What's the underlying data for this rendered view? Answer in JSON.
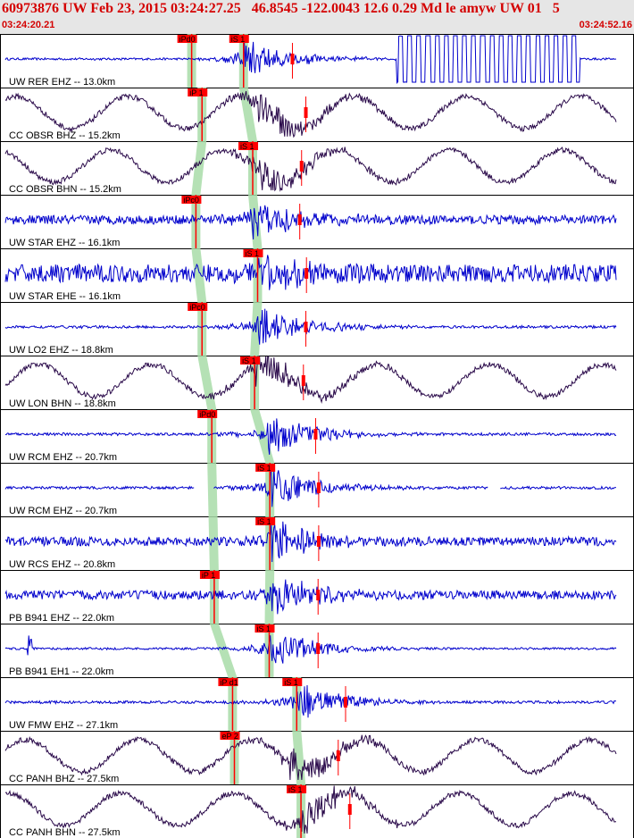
{
  "header": {
    "title": "60973876 UW Feb 23, 2015 03:24:27.25   46.8545 -122.0043 12.6 0.29 Md le amyw UW 01   5",
    "time_start": "03:24:20.21",
    "time_end": "03:24:52.16"
  },
  "colors": {
    "header_bg": "#e6e6e6",
    "title_red": "#d40000",
    "trace_blue": "#0000cc",
    "trace_dark": "#2a0a4a",
    "pick_red": "#ff0000",
    "window_green": "#a8dca8"
  },
  "chart_data": {
    "type": "seismogram",
    "time_range": [
      "03:24:20.21",
      "03:24:52.16"
    ],
    "event_origin": "03:24:27.25",
    "traces": [
      {
        "label": "UW RER EHZ -- 13.0km",
        "color": "blue",
        "picks": [
          {
            "label": "iPd0",
            "t": 0.305
          },
          {
            "label": "iS 1",
            "t": 0.39
          }
        ],
        "noise": "clipped-band",
        "gaps": []
      },
      {
        "label": "CC OBSR BHZ -- 15.2km",
        "color": "dark",
        "picks": [
          {
            "label": "iP 1",
            "t": 0.322
          }
        ],
        "noise": "long-period",
        "gaps": []
      },
      {
        "label": "CC OBSR BHN -- 15.2km",
        "color": "dark",
        "picks": [
          {
            "label": "iS 1",
            "t": 0.405
          }
        ],
        "noise": "long-period",
        "gaps": []
      },
      {
        "label": "UW STAR EHZ -- 16.1km",
        "color": "blue",
        "picks": [
          {
            "label": "iPc0",
            "t": 0.312
          }
        ],
        "noise": "high-freq",
        "gaps": []
      },
      {
        "label": "UW STAR EHE -- 16.1km",
        "color": "blue",
        "picks": [
          {
            "label": "iS 1",
            "t": 0.413
          }
        ],
        "noise": "high-freq-strong",
        "gaps": []
      },
      {
        "label": "UW LO2 EHZ -- 18.8km",
        "color": "blue",
        "picks": [
          {
            "label": "iPc0",
            "t": 0.322
          }
        ],
        "noise": "quiet",
        "gaps": []
      },
      {
        "label": "UW LON BHN -- 18.8km",
        "color": "dark",
        "picks": [
          {
            "label": "iS 1",
            "t": 0.408
          }
        ],
        "noise": "long-period",
        "gaps": []
      },
      {
        "label": "UW RCM EHZ -- 20.7km",
        "color": "blue",
        "picks": [
          {
            "label": "iPd0",
            "t": 0.338
          }
        ],
        "noise": "quiet",
        "gaps": []
      },
      {
        "label": "UW RCM EHZ -- 20.7km",
        "color": "blue",
        "picks": [
          {
            "label": "iS 1",
            "t": 0.433
          }
        ],
        "noise": "quiet",
        "gaps": [
          [
            0.31,
            0.34
          ],
          [
            0.79,
            0.81
          ]
        ]
      },
      {
        "label": "UW RCS EHZ -- 20.8km",
        "color": "blue",
        "picks": [
          {
            "label": "iS 1",
            "t": 0.433
          }
        ],
        "noise": "high-freq",
        "gaps": []
      },
      {
        "label": "PB B941 EHZ -- 22.0km",
        "color": "blue",
        "picks": [
          {
            "label": "iP 1",
            "t": 0.342
          }
        ],
        "noise": "high-freq",
        "gaps": []
      },
      {
        "label": "PB B941 EH1 -- 22.0km",
        "color": "blue",
        "picks": [
          {
            "label": "iS 1",
            "t": 0.432
          }
        ],
        "noise": "quiet-spike",
        "gaps": []
      },
      {
        "label": "UW FMW EHZ -- 27.1km",
        "color": "blue",
        "picks": [
          {
            "label": "iP d1",
            "t": 0.372
          },
          {
            "label": "iS 1",
            "t": 0.477
          }
        ],
        "noise": "quiet",
        "gaps": []
      },
      {
        "label": "CC PANH BHZ -- 27.5km",
        "color": "dark",
        "picks": [
          {
            "label": "eP 2",
            "t": 0.375
          }
        ],
        "noise": "long-period",
        "gaps": []
      },
      {
        "label": "CC PANH BHN -- 27.5km",
        "color": "dark",
        "picks": [
          {
            "label": "iS 1",
            "t": 0.484
          }
        ],
        "noise": "long-period",
        "gaps": []
      }
    ]
  }
}
